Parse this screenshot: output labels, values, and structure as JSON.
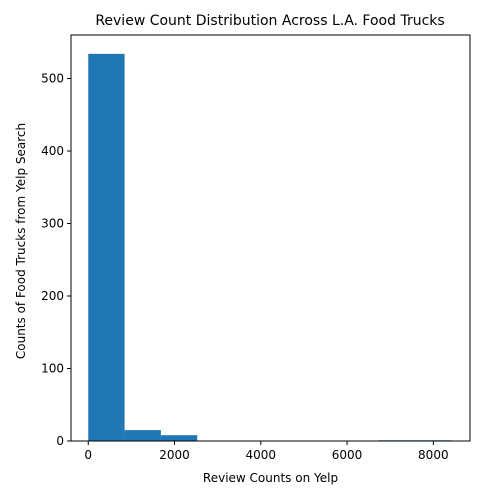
{
  "chart_data": {
    "type": "bar",
    "title": "Review Count Distribution Across L.A. Food Trucks",
    "xlabel": "Review Counts on Yelp",
    "ylabel": "Counts of Food Trucks from Yelp Search",
    "xlim": [
      -400,
      8850
    ],
    "ylim": [
      0,
      560
    ],
    "xticks": [
      0,
      2000,
      4000,
      6000,
      8000
    ],
    "yticks": [
      0,
      100,
      200,
      300,
      400,
      500
    ],
    "bar_color": "#1f77b4",
    "grid": false,
    "bins": [
      {
        "x0": 0,
        "x1": 842,
        "count": 534
      },
      {
        "x0": 842,
        "x1": 1684,
        "count": 15
      },
      {
        "x0": 1684,
        "x1": 2526,
        "count": 8
      },
      {
        "x0": 2526,
        "x1": 3368,
        "count": 0
      },
      {
        "x0": 3368,
        "x1": 4210,
        "count": 0
      },
      {
        "x0": 4210,
        "x1": 5052,
        "count": 0
      },
      {
        "x0": 5052,
        "x1": 5894,
        "count": 0
      },
      {
        "x0": 5894,
        "x1": 6736,
        "count": 0
      },
      {
        "x0": 6736,
        "x1": 7578,
        "count": 1
      },
      {
        "x0": 7578,
        "x1": 8420,
        "count": 1
      }
    ]
  }
}
